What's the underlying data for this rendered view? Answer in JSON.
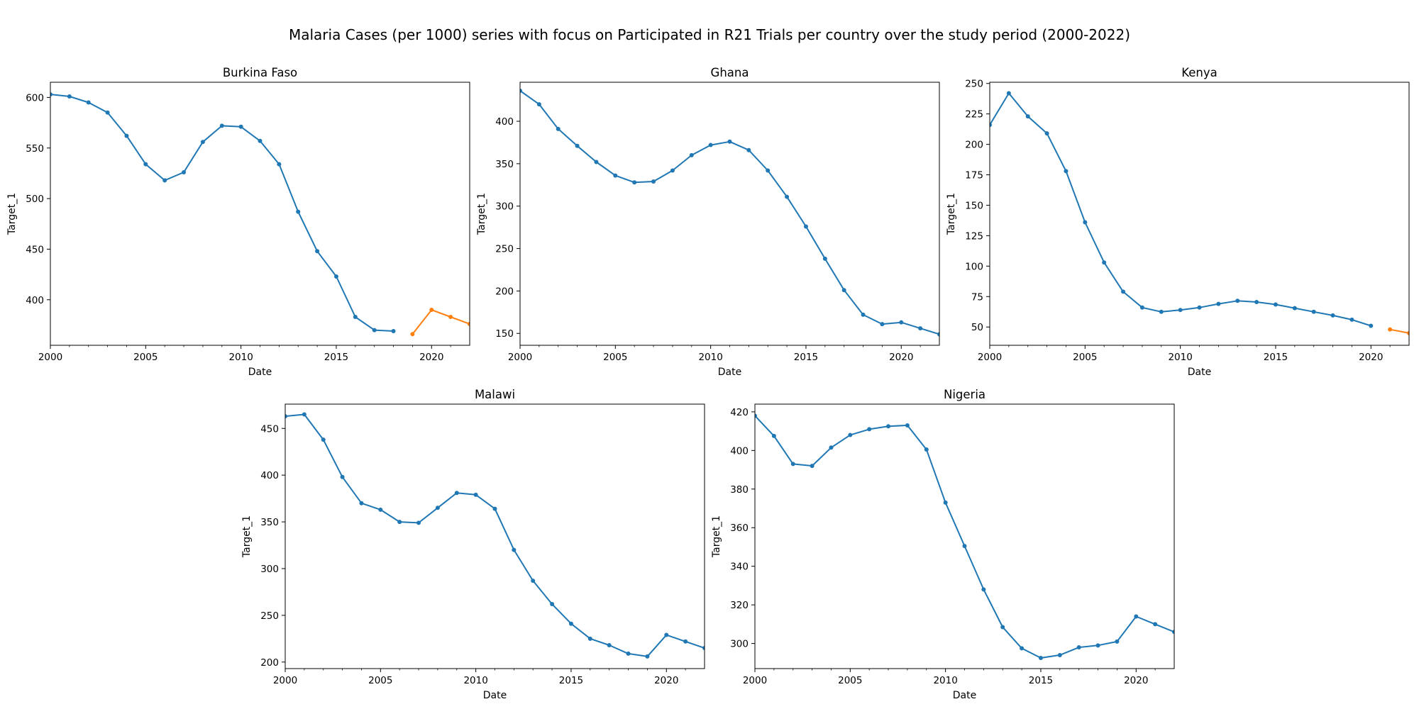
{
  "title": "Malaria Cases (per 1000) series with focus on Participated in R21 Trials per country over the study period (2000-2022)",
  "colors": {
    "baseline": "#1f77b4",
    "highlight": "#ff7f0e"
  },
  "chart_data": [
    {
      "type": "line",
      "title": "Burkina Faso",
      "xlabel": "Date",
      "ylabel": "Target_1",
      "xlim": [
        2000,
        2022
      ],
      "ylim": [
        355,
        615
      ],
      "xticks": [
        2000,
        2005,
        2010,
        2015,
        2020
      ],
      "yticks": [
        400,
        450,
        500,
        550,
        600
      ],
      "grid": false,
      "series": [
        {
          "color": "#1f77b4",
          "x": [
            2000,
            2001,
            2002,
            2003,
            2004,
            2005,
            2006,
            2007,
            2008,
            2009,
            2010,
            2011,
            2012,
            2013,
            2014,
            2015,
            2016,
            2017,
            2018
          ],
          "y": [
            603,
            601,
            595,
            585,
            562,
            534,
            518,
            526,
            556,
            572,
            571,
            557,
            534,
            487,
            448,
            423,
            383,
            370,
            369
          ]
        },
        {
          "color": "#ff7f0e",
          "x": [
            2019,
            2020,
            2021,
            2022
          ],
          "y": [
            366,
            390,
            383,
            376
          ]
        }
      ]
    },
    {
      "type": "line",
      "title": "Ghana",
      "xlabel": "Date",
      "ylabel": "Target_1",
      "xlim": [
        2000,
        2022
      ],
      "ylim": [
        136,
        446
      ],
      "xticks": [
        2000,
        2005,
        2010,
        2015,
        2020
      ],
      "yticks": [
        150,
        200,
        250,
        300,
        350,
        400
      ],
      "grid": false,
      "series": [
        {
          "color": "#1f77b4",
          "x": [
            2000,
            2001,
            2002,
            2003,
            2004,
            2005,
            2006,
            2007,
            2008,
            2009,
            2010,
            2011,
            2012,
            2013,
            2014,
            2015,
            2016,
            2017,
            2018,
            2019,
            2020,
            2021,
            2022
          ],
          "y": [
            436,
            420,
            391,
            371,
            352,
            336,
            328,
            329,
            342,
            360,
            372,
            376,
            366,
            342,
            311,
            276,
            238,
            201,
            172,
            161,
            163,
            156,
            149
          ]
        }
      ]
    },
    {
      "type": "line",
      "title": "Kenya",
      "xlabel": "Date",
      "ylabel": "Target_1",
      "xlim": [
        2000,
        2022
      ],
      "ylim": [
        35,
        251
      ],
      "xticks": [
        2000,
        2005,
        2010,
        2015,
        2020
      ],
      "yticks": [
        50,
        75,
        100,
        125,
        150,
        175,
        200,
        225,
        250
      ],
      "grid": false,
      "series": [
        {
          "color": "#1f77b4",
          "x": [
            2000,
            2001,
            2002,
            2003,
            2004,
            2005,
            2006,
            2007,
            2008,
            2009,
            2010,
            2011,
            2012,
            2013,
            2014,
            2015,
            2016,
            2017,
            2018,
            2019,
            2020
          ],
          "y": [
            216,
            242,
            223,
            209,
            178,
            136,
            103,
            79,
            66,
            62.5,
            64,
            66,
            69,
            71.5,
            70.5,
            68.5,
            65.5,
            62.5,
            59.5,
            56,
            51
          ]
        },
        {
          "color": "#ff7f0e",
          "x": [
            2021,
            2022
          ],
          "y": [
            48,
            45
          ]
        }
      ]
    },
    {
      "type": "line",
      "title": "Malawi",
      "xlabel": "Date",
      "ylabel": "Target_1",
      "xlim": [
        2000,
        2022
      ],
      "ylim": [
        193,
        476
      ],
      "xticks": [
        2000,
        2005,
        2010,
        2015,
        2020
      ],
      "yticks": [
        200,
        250,
        300,
        350,
        400,
        450
      ],
      "grid": false,
      "series": [
        {
          "color": "#1f77b4",
          "x": [
            2000,
            2001,
            2002,
            2003,
            2004,
            2005,
            2006,
            2007,
            2008,
            2009,
            2010,
            2011,
            2012,
            2013,
            2014,
            2015,
            2016,
            2017,
            2018,
            2019,
            2020,
            2021,
            2022
          ],
          "y": [
            463,
            465,
            438,
            398,
            370,
            363,
            350,
            349,
            365,
            381,
            379,
            364,
            320,
            287,
            262,
            241,
            225,
            218,
            209,
            206,
            229,
            222,
            215
          ]
        }
      ]
    },
    {
      "type": "line",
      "title": "Nigeria",
      "xlabel": "Date",
      "ylabel": "Target_1",
      "xlim": [
        2000,
        2022
      ],
      "ylim": [
        287,
        424
      ],
      "xticks": [
        2000,
        2005,
        2010,
        2015,
        2020
      ],
      "yticks": [
        300,
        320,
        340,
        360,
        380,
        400,
        420
      ],
      "grid": false,
      "series": [
        {
          "color": "#1f77b4",
          "x": [
            2000,
            2001,
            2002,
            2003,
            2004,
            2005,
            2006,
            2007,
            2008,
            2009,
            2010,
            2011,
            2012,
            2013,
            2014,
            2015,
            2016,
            2017,
            2018,
            2019,
            2020,
            2021,
            2022
          ],
          "y": [
            418,
            407.5,
            393,
            392,
            401.5,
            408,
            411,
            412.5,
            413,
            400.5,
            373,
            350.5,
            328,
            308.5,
            297.5,
            292.5,
            294,
            298,
            299,
            301,
            314,
            310,
            306
          ]
        }
      ]
    }
  ]
}
